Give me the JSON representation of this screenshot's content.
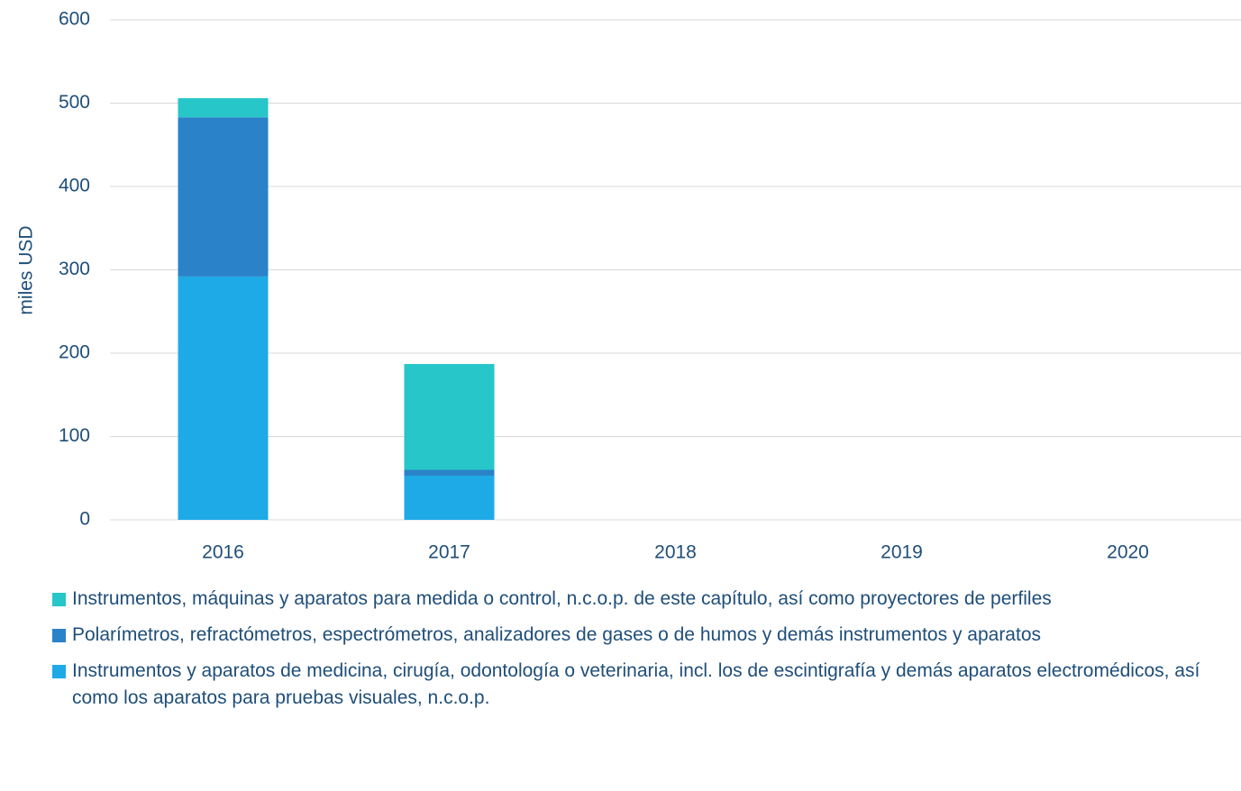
{
  "chart_data": {
    "type": "stacked_bar",
    "y_label": "miles USD",
    "categories": [
      "2016",
      "2017",
      "2018",
      "2019",
      "2020"
    ],
    "series": [
      {
        "name": "Instrumentos, máquinas y aparatos para medida o control, n.c.o.p. de este capítulo, así como proyectores de perfiles",
        "color": "#26c6c9",
        "values": [
          23,
          127,
          0,
          0,
          0
        ]
      },
      {
        "name": "Polarímetros, refractómetros, espectrómetros, analizadores de gases o de humos y demás instrumentos y aparatos",
        "color": "#2a82c8",
        "values": [
          191,
          7,
          0,
          0,
          0
        ]
      },
      {
        "name": "Instrumentos y aparatos de medicina, cirugía, odontología o veterinaria, incl. los de escintigrafía y demás aparatos electromédicos, así como los aparatos para pruebas visuales, n.c.o.p.",
        "color": "#1eaae6",
        "values": [
          292,
          53,
          0,
          0,
          0
        ]
      }
    ],
    "ylim": [
      0,
      600
    ],
    "yticks": [
      0,
      100,
      200,
      300,
      400,
      500,
      600
    ],
    "grid": true,
    "legend": "bottom"
  }
}
